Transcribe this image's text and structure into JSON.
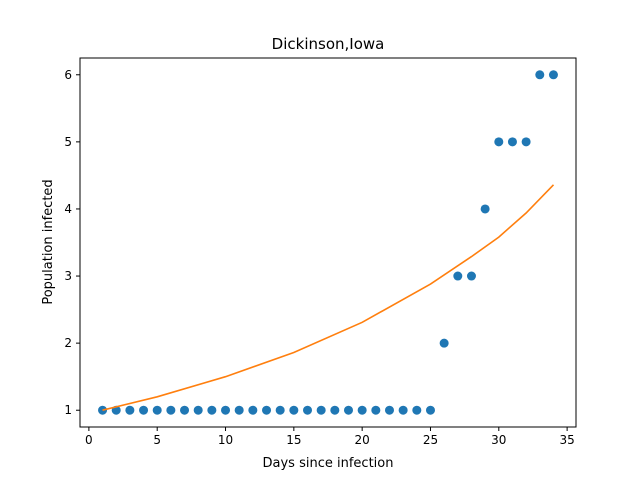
{
  "chart_data": {
    "type": "scatter",
    "title": "Dickinson,Iowa",
    "xlabel": "Days since infection",
    "ylabel": "Population infected",
    "xlim": [
      -0.65,
      35.65
    ],
    "ylim": [
      0.75,
      6.25
    ],
    "xticks": [
      0,
      5,
      10,
      15,
      20,
      25,
      30,
      35
    ],
    "yticks": [
      1,
      2,
      3,
      4,
      5,
      6
    ],
    "grid": false,
    "series": [
      {
        "kind": "scatter",
        "color": "#1f77b4",
        "points": [
          [
            1,
            1
          ],
          [
            2,
            1
          ],
          [
            3,
            1
          ],
          [
            4,
            1
          ],
          [
            5,
            1
          ],
          [
            6,
            1
          ],
          [
            7,
            1
          ],
          [
            8,
            1
          ],
          [
            9,
            1
          ],
          [
            10,
            1
          ],
          [
            11,
            1
          ],
          [
            12,
            1
          ],
          [
            13,
            1
          ],
          [
            14,
            1
          ],
          [
            15,
            1
          ],
          [
            16,
            1
          ],
          [
            17,
            1
          ],
          [
            18,
            1
          ],
          [
            19,
            1
          ],
          [
            20,
            1
          ],
          [
            21,
            1
          ],
          [
            22,
            1
          ],
          [
            23,
            1
          ],
          [
            24,
            1
          ],
          [
            25,
            1
          ],
          [
            26,
            2
          ],
          [
            27,
            3
          ],
          [
            28,
            3
          ],
          [
            29,
            4
          ],
          [
            30,
            5
          ],
          [
            31,
            5
          ],
          [
            32,
            5
          ],
          [
            33,
            6
          ],
          [
            34,
            6
          ]
        ]
      },
      {
        "kind": "line",
        "color": "#ff7f0e",
        "points": [
          [
            1,
            1.0
          ],
          [
            5,
            1.2
          ],
          [
            10,
            1.5
          ],
          [
            15,
            1.86
          ],
          [
            20,
            2.31
          ],
          [
            25,
            2.88
          ],
          [
            28,
            3.29
          ],
          [
            30,
            3.58
          ],
          [
            32,
            3.94
          ],
          [
            34,
            4.36
          ]
        ]
      }
    ]
  }
}
